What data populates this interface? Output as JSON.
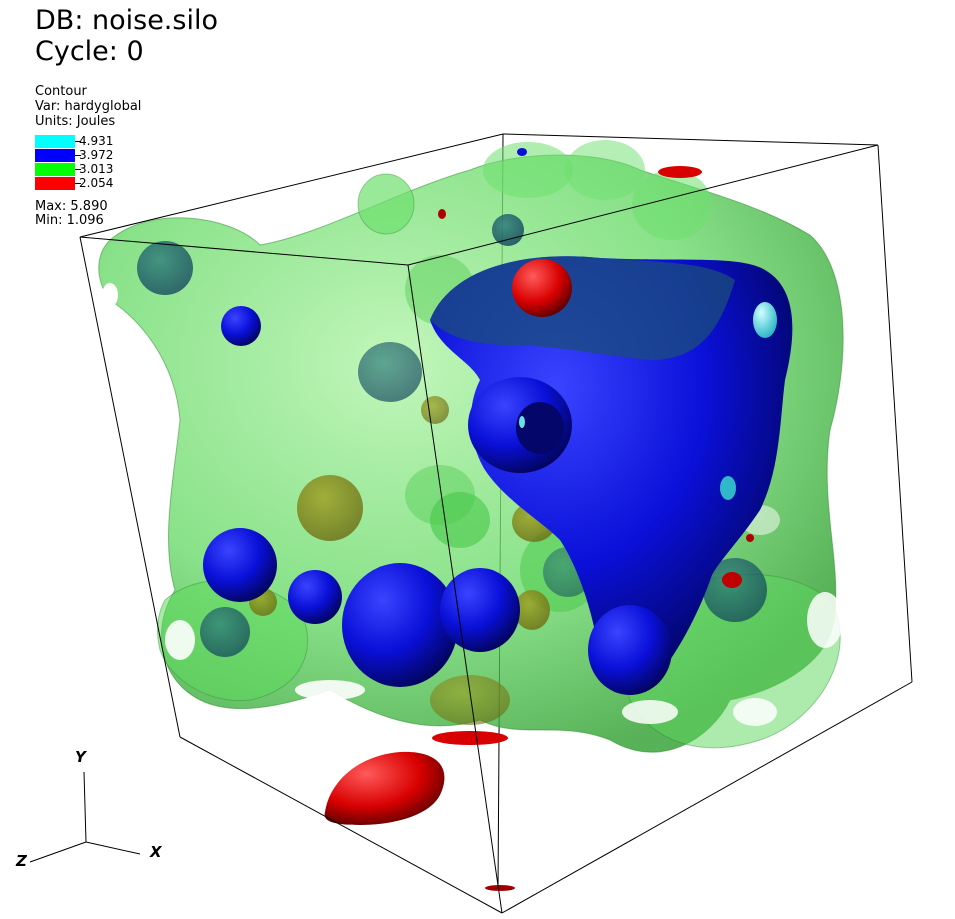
{
  "header": {
    "db": "DB: noise.silo",
    "cycle": "Cycle: 0"
  },
  "legend": {
    "plot_type": "Contour",
    "var": "Var: hardyglobal",
    "units": "Units: Joules",
    "levels": [
      {
        "value": "4.931",
        "color": "#00ffff"
      },
      {
        "value": "3.972",
        "color": "#0000ff"
      },
      {
        "value": "3.013",
        "color": "#00ff00"
      },
      {
        "value": "2.054",
        "color": "#ff0000"
      }
    ],
    "max": "Max:  5.890",
    "min": "Min:  1.096"
  },
  "axes": {
    "x": "X",
    "y": "Y",
    "z": "Z"
  },
  "colors": {
    "green_surface": "#55e055",
    "blue_surface": "#0a10d8",
    "red_surface": "#e00000",
    "cyan_surface": "#40e0e0",
    "background": "#ffffff"
  }
}
